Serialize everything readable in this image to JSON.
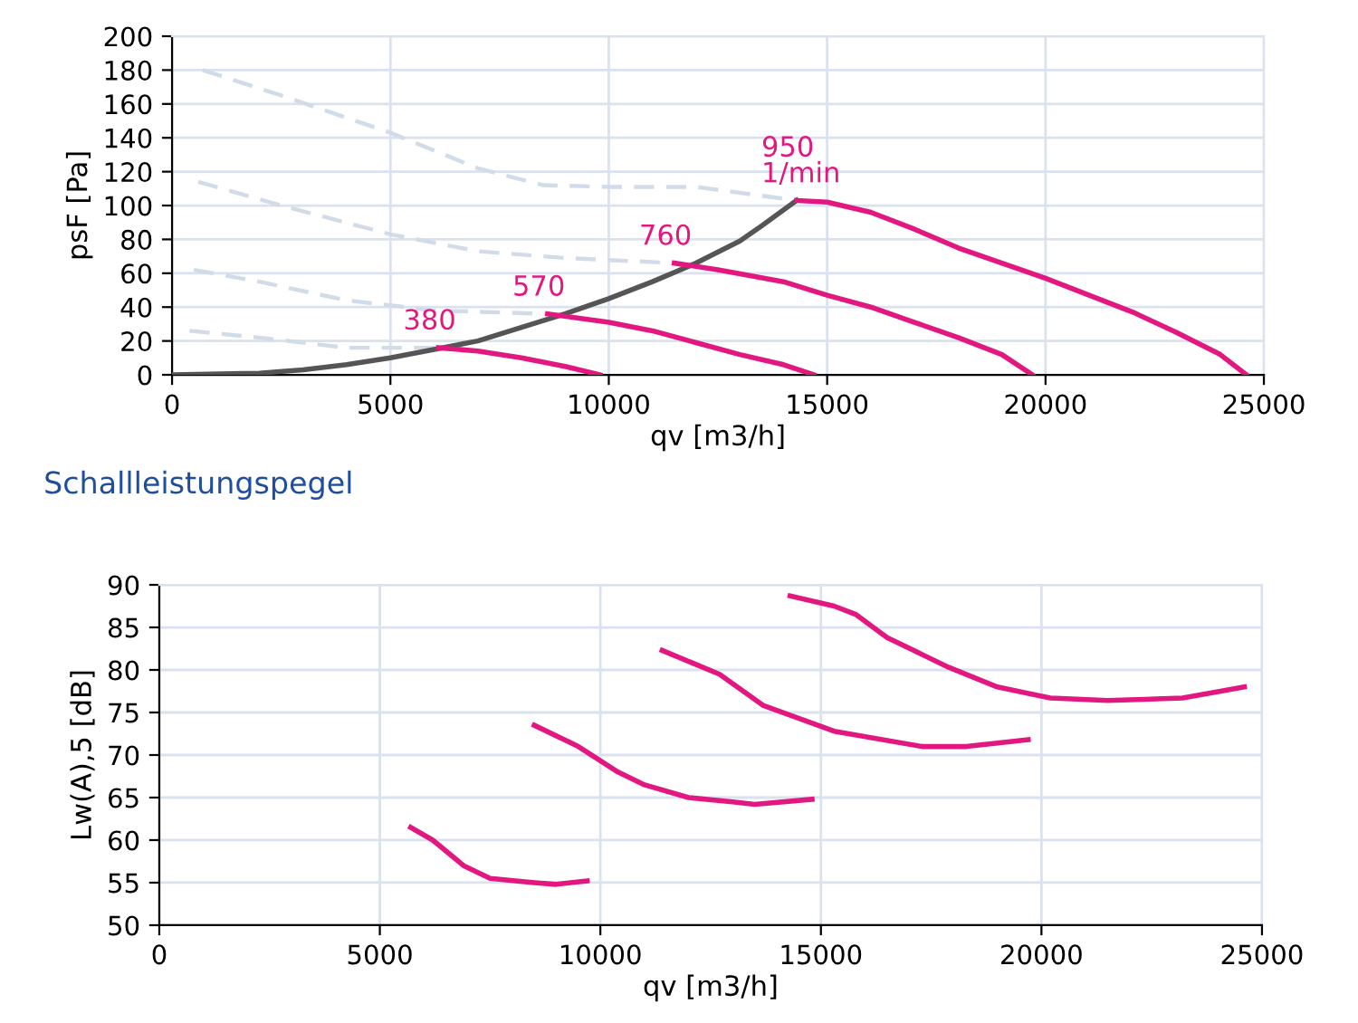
{
  "chart_data": [
    {
      "type": "line",
      "xlabel": "qv [m3/h]",
      "ylabel": "psF [Pa]",
      "xlim": [
        0,
        25000
      ],
      "xticks": [
        0,
        5000,
        10000,
        15000,
        20000,
        25000
      ],
      "ylim": [
        0,
        200
      ],
      "yticks": [
        0,
        20,
        40,
        60,
        80,
        100,
        120,
        140,
        160,
        180,
        200
      ],
      "grid": true,
      "legend": false,
      "marker": "none",
      "series": [
        {
          "color": "#d2dce8",
          "line_style": "dashed",
          "x": [
            700,
            2500,
            5000,
            7000,
            8500,
            10000,
            12000,
            14300
          ],
          "values": [
            180,
            165,
            143,
            122,
            112,
            111,
            111,
            103
          ]
        },
        {
          "color": "#d2dce8",
          "line_style": "dashed",
          "x": [
            600,
            2500,
            5000,
            7000,
            9000,
            11500
          ],
          "values": [
            114,
            100,
            83,
            73,
            69,
            66
          ]
        },
        {
          "color": "#d2dce8",
          "line_style": "dashed",
          "x": [
            500,
            2000,
            4000,
            6000,
            8600
          ],
          "values": [
            62,
            55,
            44,
            38,
            36
          ]
        },
        {
          "color": "#d2dce8",
          "line_style": "dashed",
          "x": [
            400,
            2000,
            4000,
            6100
          ],
          "values": [
            26,
            22,
            16,
            16
          ]
        },
        {
          "color": "#555555",
          "line_style": "solid",
          "x": [
            0,
            2000,
            3000,
            4000,
            5000,
            6000,
            7000,
            8000,
            9000,
            10000,
            11000,
            12000,
            13000,
            13500,
            14300
          ],
          "values": [
            0,
            1,
            3,
            6,
            10,
            15,
            20,
            28,
            36,
            45,
            55,
            66,
            79,
            88,
            103
          ]
        },
        {
          "name": "380",
          "color": "#e2177f",
          "line_style": "solid",
          "x": [
            6100,
            7000,
            8000,
            9000,
            9800
          ],
          "values": [
            16,
            14,
            10,
            5,
            0
          ]
        },
        {
          "name": "570",
          "color": "#e2177f",
          "line_style": "solid",
          "x": [
            8600,
            10000,
            11000,
            12000,
            13000,
            14000,
            14700
          ],
          "values": [
            36,
            31,
            26,
            19,
            12,
            6,
            0
          ]
        },
        {
          "name": "760",
          "color": "#e2177f",
          "line_style": "solid",
          "x": [
            11500,
            12500,
            14000,
            15000,
            16000,
            17000,
            18000,
            19000,
            19700
          ],
          "values": [
            66,
            62,
            55,
            47,
            40,
            31,
            22,
            12,
            0
          ]
        },
        {
          "name": "950\n1/min",
          "color": "#e2177f",
          "line_style": "solid",
          "x": [
            14300,
            15000,
            16000,
            17000,
            18000,
            19000,
            20000,
            21000,
            22000,
            23000,
            24000,
            24600
          ],
          "values": [
            103,
            102,
            96,
            86,
            75,
            66,
            57,
            47,
            37,
            25,
            12,
            0
          ]
        }
      ]
    },
    {
      "type": "line",
      "title": "Schallleistungspegel",
      "xlabel": "qv [m3/h]",
      "ylabel": "Lw(A),5 [dB]",
      "xlim": [
        0,
        25000
      ],
      "xticks": [
        0,
        5000,
        10000,
        15000,
        20000,
        25000
      ],
      "ylim": [
        50,
        90
      ],
      "yticks": [
        50,
        55,
        60,
        65,
        70,
        75,
        80,
        85,
        90
      ],
      "grid": true,
      "legend": false,
      "marker": "none",
      "series": [
        {
          "color": "#e2177f",
          "line_style": "solid",
          "x": [
            5700,
            6200,
            6900,
            7500,
            8500,
            9000,
            9700
          ],
          "values": [
            61.5,
            60,
            57,
            55.5,
            55,
            54.8,
            55.2
          ]
        },
        {
          "color": "#e2177f",
          "line_style": "solid",
          "x": [
            8500,
            9500,
            10400,
            11000,
            12000,
            13000,
            13500,
            14800
          ],
          "values": [
            73.5,
            71,
            68,
            66.5,
            65,
            64.5,
            64.2,
            64.8
          ]
        },
        {
          "color": "#e2177f",
          "line_style": "solid",
          "x": [
            11400,
            12700,
            13700,
            15300,
            17300,
            18300,
            19700
          ],
          "values": [
            82.3,
            79.5,
            75.8,
            72.8,
            71,
            71,
            71.8
          ]
        },
        {
          "color": "#e2177f",
          "line_style": "solid",
          "x": [
            14300,
            15300,
            15800,
            16500,
            17900,
            19000,
            20200,
            21500,
            23200,
            24600
          ],
          "values": [
            88.7,
            87.5,
            86.5,
            83.8,
            80.3,
            78,
            76.7,
            76.4,
            76.7,
            78
          ]
        }
      ]
    }
  ]
}
